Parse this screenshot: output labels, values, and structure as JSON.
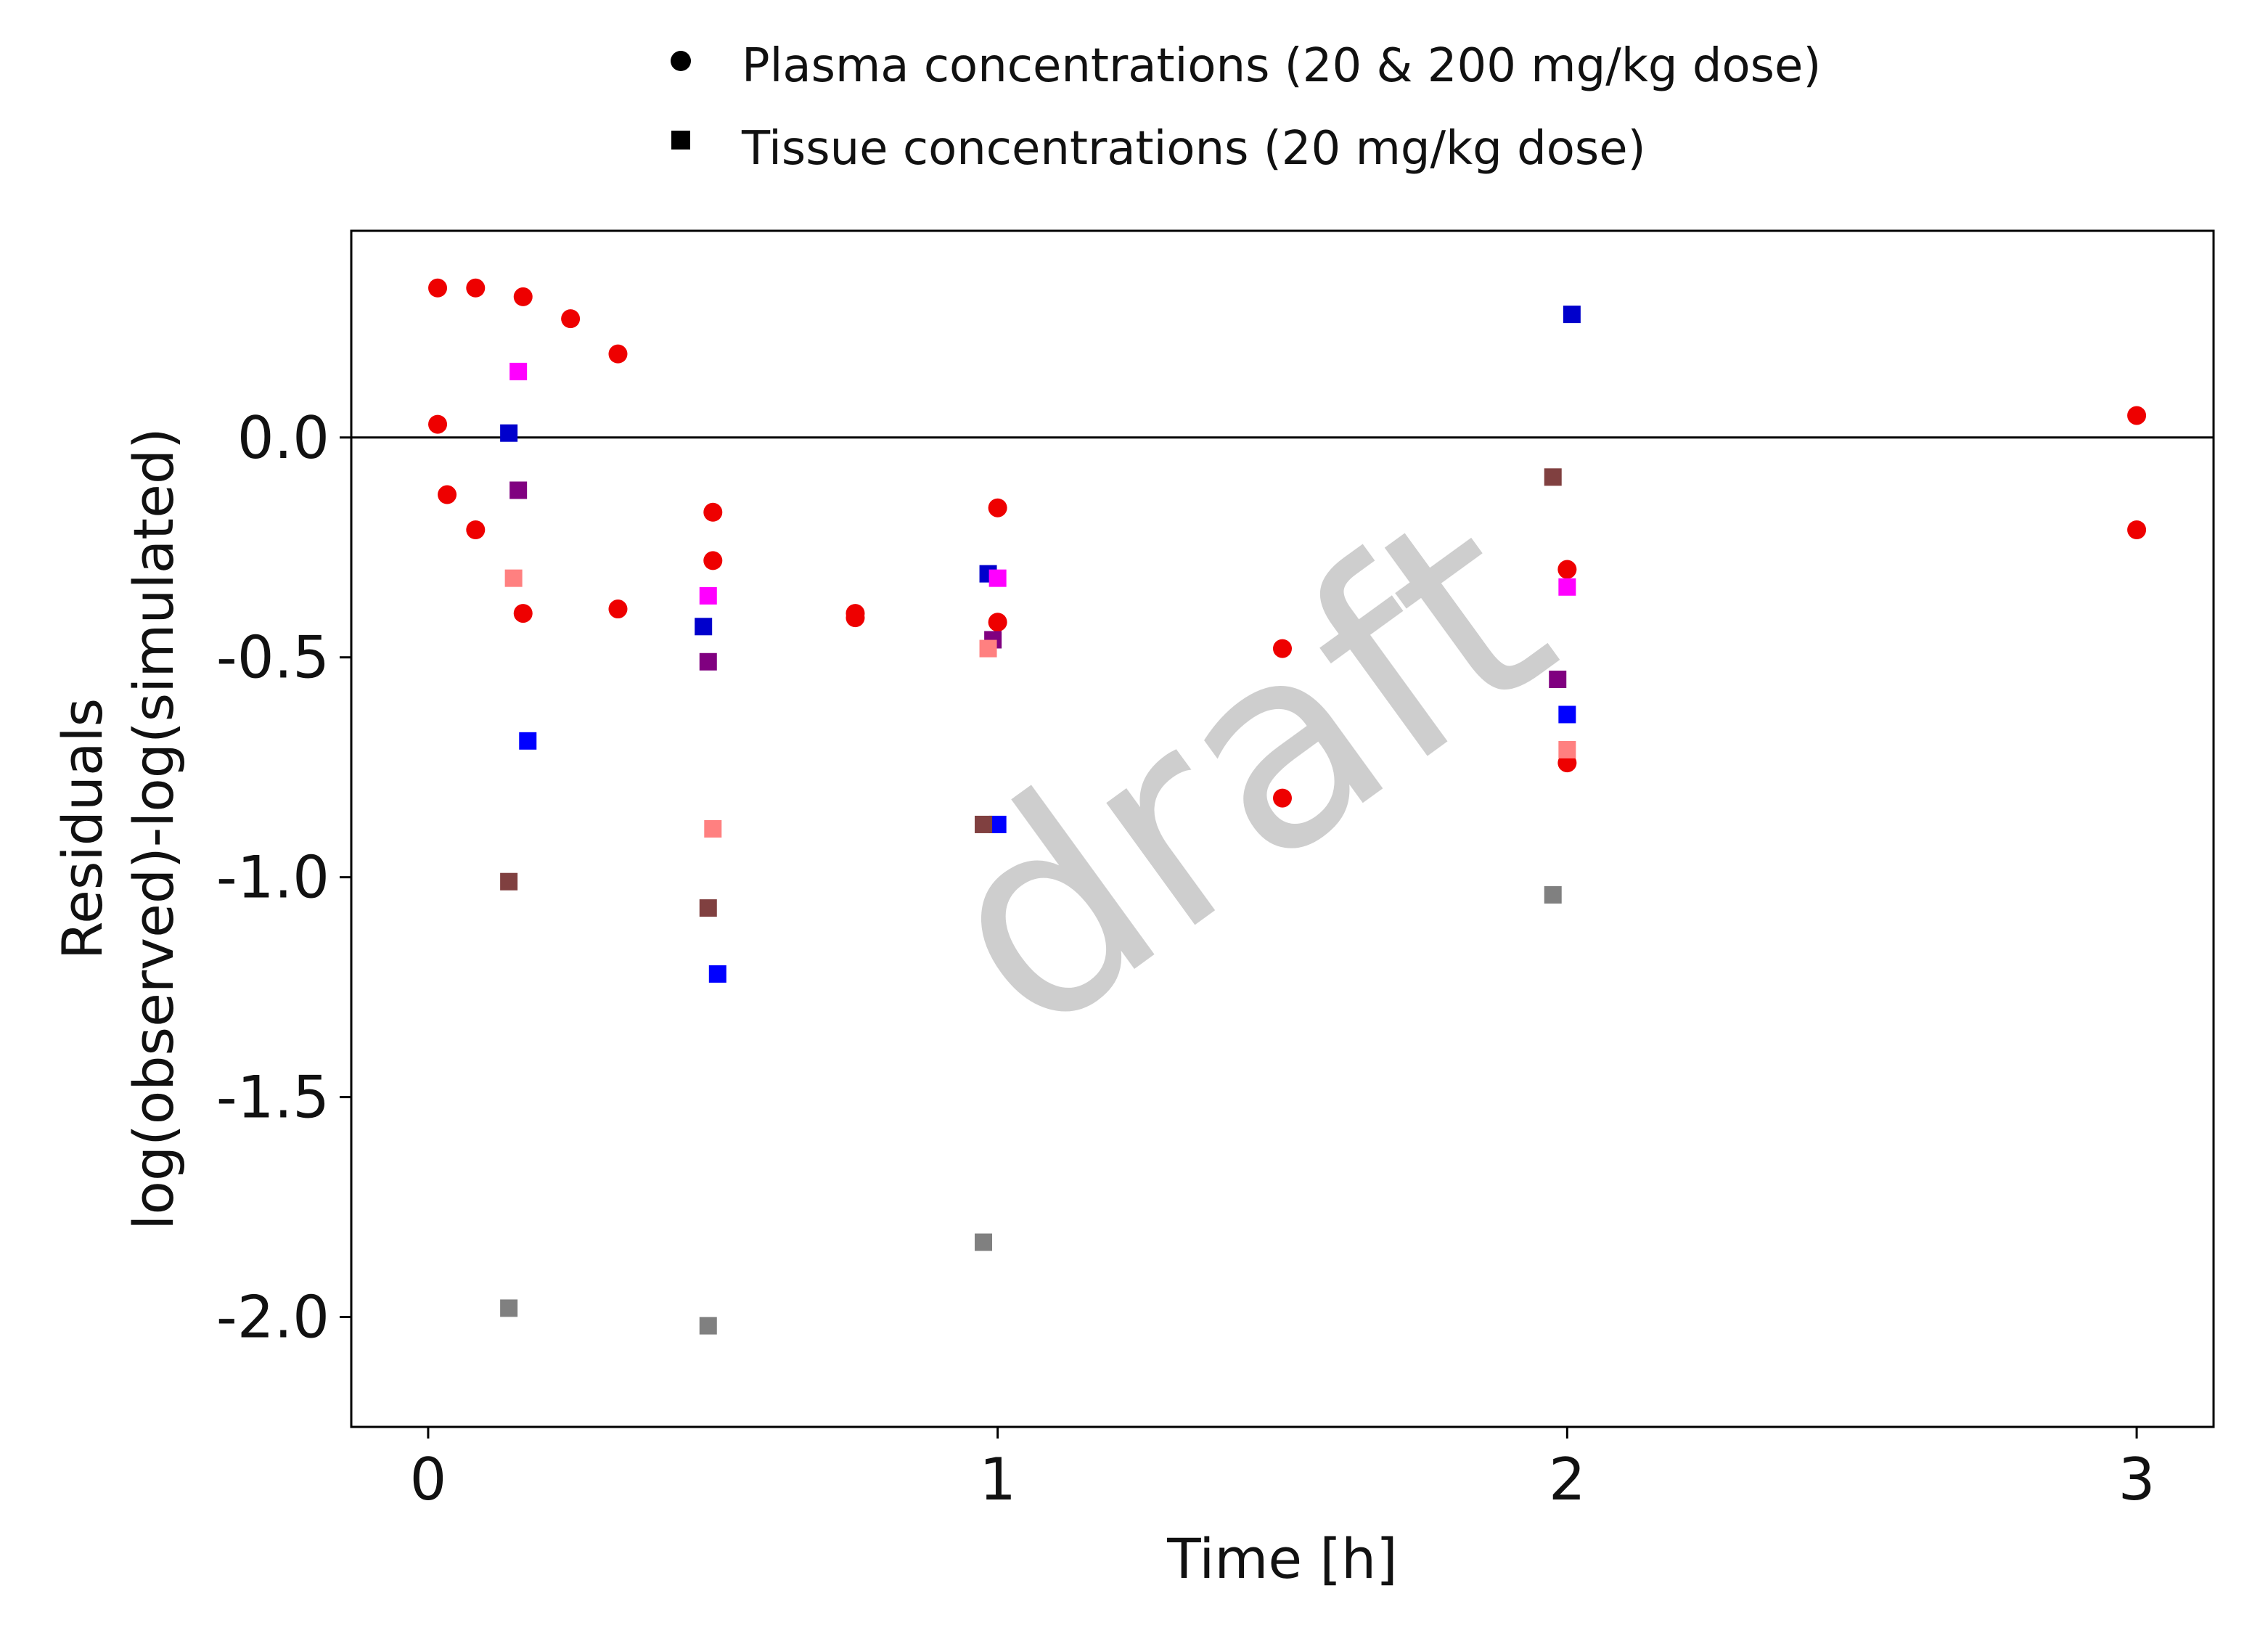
{
  "chart_data": {
    "type": "scatter",
    "xlabel": "Time [h]",
    "ylabel_lines": [
      "Residuals",
      "log(observed)-log(simulated)"
    ],
    "xlim": [
      -0.135,
      3.135
    ],
    "ylim": [
      -2.25,
      0.47
    ],
    "x_ticks": [
      0,
      1,
      2,
      3
    ],
    "x_tick_labels": [
      "0",
      "1",
      "2",
      "3"
    ],
    "y_ticks": [
      0.0,
      -0.5,
      -1.0,
      -1.5,
      -2.0
    ],
    "y_tick_labels": [
      "0.0",
      "-0.5",
      "-1.0",
      "-1.5",
      "-2.0"
    ],
    "reference_line_y": 0,
    "grid": false,
    "legend_placement": "top-center",
    "legend": [
      {
        "label": "Plasma concentrations (20 & 200 mg/kg dose)",
        "marker": "circle",
        "color": "#000000"
      },
      {
        "label": "Tissue concentrations (20 mg/kg dose)",
        "marker": "square",
        "color": "#000000"
      }
    ],
    "watermark": "draft",
    "series": [
      {
        "marker": "circle",
        "color": "#ee0000",
        "points": [
          [
            0.0167,
            0.34
          ],
          [
            0.0833,
            0.34
          ],
          [
            0.1667,
            0.32
          ],
          [
            0.25,
            0.27
          ],
          [
            0.3333,
            0.19
          ],
          [
            0.0167,
            0.03
          ],
          [
            0.0333,
            -0.13
          ],
          [
            0.0833,
            -0.21
          ],
          [
            0.1667,
            -0.4
          ],
          [
            0.3333,
            -0.39
          ],
          [
            0.5,
            -0.17
          ],
          [
            0.5,
            -0.28
          ],
          [
            0.75,
            -0.4
          ],
          [
            0.75,
            -0.41
          ],
          [
            1.0,
            -0.16
          ],
          [
            1.0,
            -0.42
          ],
          [
            1.5,
            -0.48
          ],
          [
            1.5,
            -0.82
          ],
          [
            2.0,
            -0.3
          ],
          [
            2.0,
            -0.74
          ],
          [
            3.0,
            0.05
          ],
          [
            3.0,
            -0.21
          ]
        ]
      },
      {
        "marker": "square",
        "color": "#0000cc",
        "points": [
          [
            0.1417,
            0.01
          ],
          [
            0.4833,
            -0.43
          ],
          [
            0.9833,
            -0.31
          ],
          [
            2.0083,
            0.28
          ]
        ]
      },
      {
        "marker": "square",
        "color": "#ff00ff",
        "points": [
          [
            0.1583,
            0.15
          ],
          [
            0.4917,
            -0.36
          ],
          [
            1.0,
            -0.32
          ],
          [
            2.0,
            -0.34
          ]
        ]
      },
      {
        "marker": "square",
        "color": "#800080",
        "points": [
          [
            0.1583,
            -0.12
          ],
          [
            0.4917,
            -0.51
          ],
          [
            0.9917,
            -0.46
          ],
          [
            1.9833,
            -0.55
          ]
        ]
      },
      {
        "marker": "square",
        "color": "#ff8080",
        "points": [
          [
            0.15,
            -0.32
          ],
          [
            0.5,
            -0.89
          ],
          [
            0.9833,
            -0.48
          ],
          [
            2.0,
            -0.71
          ]
        ]
      },
      {
        "marker": "square",
        "color": "#0000ff",
        "points": [
          [
            0.175,
            -0.69
          ],
          [
            0.5083,
            -1.22
          ],
          [
            1.0,
            -0.88
          ],
          [
            2.0,
            -0.63
          ]
        ]
      },
      {
        "marker": "square",
        "color": "#804040",
        "points": [
          [
            0.1417,
            -1.01
          ],
          [
            0.4917,
            -1.07
          ],
          [
            0.975,
            -0.88
          ],
          [
            1.975,
            -0.09
          ]
        ]
      },
      {
        "marker": "square",
        "color": "#808080",
        "points": [
          [
            0.1417,
            -1.98
          ],
          [
            0.4917,
            -2.02
          ],
          [
            0.975,
            -1.83
          ],
          [
            1.975,
            -1.04
          ]
        ]
      }
    ]
  }
}
